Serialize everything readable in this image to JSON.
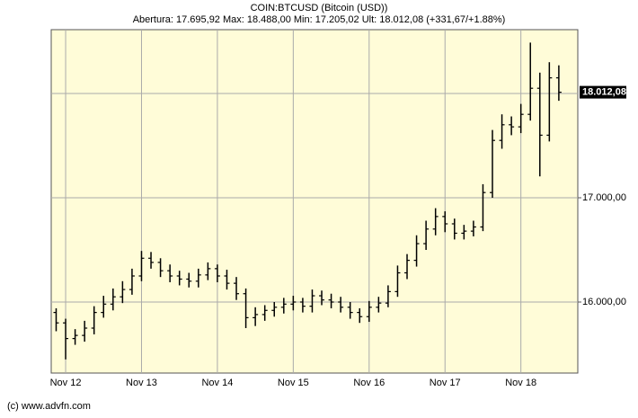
{
  "chart_data": {
    "type": "ohlc",
    "title": "COIN:BTCUSD (Bitcoin (USD))",
    "subtitle": "Abertura: 17.695,92 Max: 18.488,00 Min: 17.205,02 Ult: 18.012,08 (+331,67/+1.88%)",
    "footer": "(c) www.advfn.com",
    "color": "#000000",
    "background": "#fffcd8",
    "grid": true,
    "xlim": [
      -0.19,
      6.75
    ],
    "ylim": [
      15319,
      18612
    ],
    "xticks": [
      {
        "value": 0,
        "label": "Nov 12"
      },
      {
        "value": 1,
        "label": "Nov 13"
      },
      {
        "value": 2,
        "label": "Nov 14"
      },
      {
        "value": 3,
        "label": "Nov 15"
      },
      {
        "value": 4,
        "label": "Nov 16"
      },
      {
        "value": 5,
        "label": "Nov 17"
      },
      {
        "value": 6,
        "label": "Nov 18"
      }
    ],
    "yticks": [
      {
        "value": 16000,
        "label": "16.000,00"
      },
      {
        "value": 17000,
        "label": "17.000,00"
      }
    ],
    "ygrid": [
      16000,
      17000,
      18000
    ],
    "last_price": {
      "value": 18012.08,
      "label": "18.012,08"
    },
    "x": [
      -0.125,
      0,
      0.125,
      0.25,
      0.375,
      0.5,
      0.625,
      0.75,
      0.875,
      1,
      1.125,
      1.25,
      1.375,
      1.5,
      1.625,
      1.75,
      1.875,
      2,
      2.125,
      2.25,
      2.375,
      2.5,
      2.625,
      2.75,
      2.875,
      3,
      3.125,
      3.25,
      3.375,
      3.5,
      3.625,
      3.75,
      3.875,
      4,
      4.125,
      4.25,
      4.375,
      4.5,
      4.625,
      4.75,
      4.875,
      5,
      5.125,
      5.25,
      5.375,
      5.5,
      5.625,
      5.75,
      5.875,
      6,
      6.125,
      6.25,
      6.375,
      6.5
    ],
    "open": [
      15900,
      15800,
      15650,
      15680,
      15750,
      15900,
      15980,
      16050,
      16120,
      16250,
      16420,
      16380,
      16300,
      16250,
      16220,
      16200,
      16260,
      16320,
      16250,
      16180,
      16080,
      15850,
      15880,
      15920,
      15950,
      15980,
      16000,
      15960,
      16060,
      16020,
      16000,
      15950,
      15900,
      15860,
      15950,
      15990,
      16100,
      16280,
      16400,
      16560,
      16700,
      16820,
      16750,
      16660,
      16680,
      16720,
      17050,
      17550,
      17700,
      17680,
      17800,
      18050,
      17600,
      18150
    ],
    "high": [
      15940,
      15840,
      15740,
      15820,
      15960,
      16060,
      16130,
      16200,
      16320,
      16490,
      16480,
      16420,
      16360,
      16300,
      16280,
      16320,
      16380,
      16360,
      16310,
      16240,
      16130,
      15950,
      15970,
      16000,
      16040,
      16060,
      16040,
      16120,
      16110,
      16080,
      16050,
      16000,
      15940,
      16010,
      16050,
      16160,
      16350,
      16460,
      16640,
      16780,
      16900,
      16870,
      16800,
      16740,
      16780,
      17130,
      17650,
      17800,
      17780,
      17900,
      18488,
      18200,
      18300,
      18270
    ],
    "low": [
      15720,
      15450,
      15590,
      15620,
      15690,
      15850,
      15920,
      15990,
      16070,
      16200,
      16320,
      16240,
      16190,
      16160,
      16140,
      16140,
      16210,
      16190,
      16120,
      16020,
      15750,
      15770,
      15820,
      15860,
      15890,
      15920,
      15900,
      15900,
      15970,
      15940,
      15900,
      15840,
      15800,
      15810,
      15900,
      15950,
      16050,
      16220,
      16340,
      16500,
      16640,
      16670,
      16600,
      16600,
      16630,
      16680,
      17000,
      17470,
      17600,
      17620,
      17740,
      17205,
      17540,
      17930
    ],
    "close": [
      15800,
      15650,
      15680,
      15750,
      15900,
      15980,
      16050,
      16120,
      16250,
      16420,
      16380,
      16300,
      16250,
      16220,
      16200,
      16260,
      16320,
      16250,
      16180,
      16080,
      15850,
      15880,
      15920,
      15950,
      15980,
      16000,
      15960,
      16060,
      16020,
      16000,
      15950,
      15900,
      15860,
      15950,
      15990,
      16100,
      16280,
      16400,
      16560,
      16700,
      16820,
      16750,
      16660,
      16680,
      16720,
      17050,
      17550,
      17700,
      17680,
      17800,
      18050,
      17600,
      18150,
      18012.08
    ]
  }
}
